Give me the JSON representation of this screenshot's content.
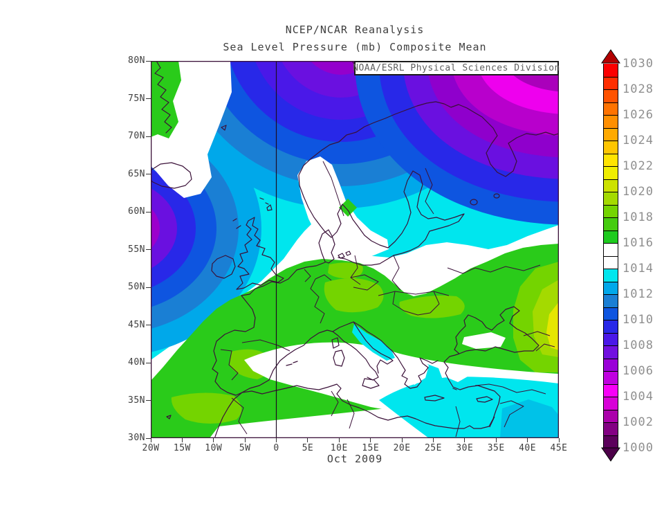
{
  "header": {
    "title": "NCEP/NCAR Reanalysis",
    "subtitle": "Sea Level Pressure (mb) Composite Mean"
  },
  "attribution_box": {
    "label": "NOAA/ESRL Physical Sciences Division"
  },
  "caption": {
    "period": "Oct 2009"
  },
  "chart_data": {
    "type": "heatmap",
    "title": "NCEP/NCAR Reanalysis",
    "subtitle": "Sea Level Pressure (mb) Composite Mean",
    "period": "Oct 2009",
    "attribution": "NOAA/ESRL Physical Sciences Division",
    "x_axis": {
      "ticks": [
        "20W",
        "15W",
        "10W",
        "5W",
        "0",
        "5E",
        "10E",
        "15E",
        "20E",
        "25E",
        "30E",
        "35E",
        "40E",
        "45E"
      ],
      "range": "20W to 45E"
    },
    "y_axis": {
      "ticks_top_to_bottom": [
        "80N",
        "75N",
        "70N",
        "65N",
        "60N",
        "55N",
        "50N",
        "45N",
        "40N",
        "35N",
        "30N"
      ],
      "range": "30N to 80N"
    },
    "colorbar": {
      "units": "mb",
      "min": 1000,
      "max": 1030,
      "cell_size_mb": 1,
      "labels_top_to_bottom": [
        "1030",
        "1028",
        "1026",
        "1024",
        "1022",
        "1020",
        "1018",
        "1016",
        "1014",
        "1012",
        "1010",
        "1008",
        "1006",
        "1004",
        "1002",
        "1000"
      ],
      "colors_low_to_high": [
        "#5c005c",
        "#830083",
        "#ab00ab",
        "#d800d8",
        "#f800f8",
        "#c000e0",
        "#9a00d8",
        "#7210e0",
        "#4a18e8",
        "#2828e8",
        "#0e55e0",
        "#1a7fd4",
        "#00a8ea",
        "#00e6ee",
        "#ffffff",
        "#ffffff",
        "#1ecb1e",
        "#45cc0f",
        "#74d400",
        "#a4da00",
        "#cde200",
        "#f0ee00",
        "#ffe400",
        "#ffc600",
        "#ffaa00",
        "#ff8f00",
        "#ff7300",
        "#ff5300",
        "#ff2e00",
        "#fb0000"
      ],
      "under_range_color": "#4c0049",
      "over_range_color": "#b20000",
      "label_color": "#8f8f8f"
    },
    "pressure_features": [
      {
        "area": "Closed low, NE Atlantic at left map edge near 57N 20W",
        "approx_mb": 1004
      },
      {
        "area": "Arctic trough at top edge near 0-10E (violet/purple core)",
        "approx_mb": 1005
      },
      {
        "area": "Low over Barents Sea / Arctic Russia, top-right corner",
        "approx_mb": 1003
      },
      {
        "area": "Greenland coast wedge, top-left corner",
        "approx_mb": 1017
      },
      {
        "area": "White band: Scandinavia interior, central Europe, W Mediterranean",
        "approx_mb": 1015
      },
      {
        "area": "Ridge of high pressure over S and E Europe (green)",
        "approx_mb": 1017
      },
      {
        "area": "Maximum at right edge near 45E 47N (yellow)",
        "approx_mb": 1022
      },
      {
        "area": "Eastern Mediterranean and Levant (cyan)",
        "approx_mb": 1013
      }
    ]
  }
}
